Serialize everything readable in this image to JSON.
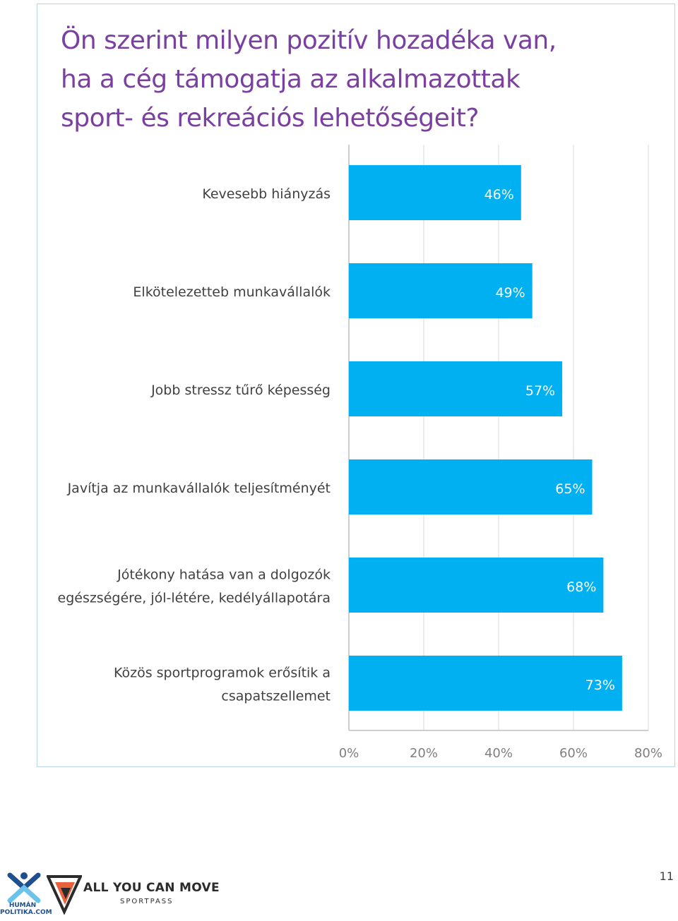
{
  "title": "Ön szerint milyen pozitív hozadéka van, ha a cég támogatja az alkalmazottak sport- és rekreációs lehetőségeit?",
  "chart_data": {
    "type": "bar",
    "orientation": "horizontal",
    "categories": [
      [
        "Kevesebb hiányzás"
      ],
      [
        "Elkötelezetteb munkavállalók"
      ],
      [
        "Jobb stressz tűrő képesség"
      ],
      [
        "Javítja az munkavállalók teljesítményét"
      ],
      [
        "Jótékony hatása van a dolgozók",
        "egészségére, jól-létére, kedélyállapotára"
      ],
      [
        "Közös sportprogramok erősítik a",
        "csapatszellemet"
      ]
    ],
    "values": [
      46,
      49,
      57,
      65,
      68,
      73
    ],
    "value_labels": [
      "46%",
      "49%",
      "57%",
      "65%",
      "68%",
      "73%"
    ],
    "xlim": [
      0,
      80
    ],
    "ticks": [
      0,
      20,
      40,
      60,
      80
    ],
    "tick_labels": [
      "0%",
      "20%",
      "40%",
      "60%",
      "80%"
    ],
    "grid": true,
    "legend": "none",
    "bar_color": "#00b0f0",
    "grid_color": "#d9d9d9",
    "axis_color": "#bfbfbf"
  },
  "footer": {
    "logo_left_text": "HUMÁN POLITIKA.COM",
    "logo_right_text": "ALL YOU CAN MOVE",
    "logo_right_sub": "SPORTPASS",
    "page_number": "11"
  }
}
